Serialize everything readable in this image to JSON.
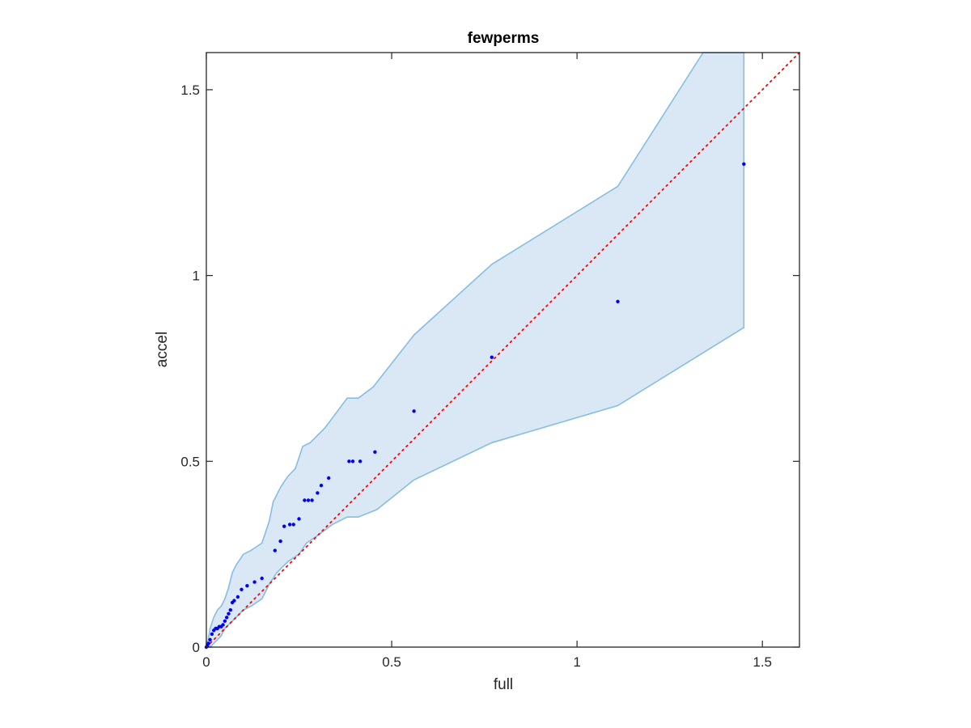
{
  "chart_data": {
    "type": "scatter",
    "title": "fewperms",
    "xlabel": "full",
    "ylabel": "accel",
    "xlim": [
      0,
      1.6
    ],
    "ylim": [
      0,
      1.6
    ],
    "xticks": [
      0,
      0.5,
      1,
      1.5
    ],
    "yticks": [
      0,
      0.5,
      1,
      1.5
    ],
    "xtick_labels": [
      "0",
      "0.5",
      "1",
      "1.5"
    ],
    "ytick_labels": [
      "0",
      "0.5",
      "1",
      "1.5"
    ],
    "grid": false,
    "colors": {
      "points": "#0000ff",
      "band_fill": "#d9e8f4",
      "band_edge": "#87bde0",
      "reference_line": "#ff0000",
      "axes": "#262626"
    },
    "reference_line": {
      "style": "dotted",
      "from": [
        0,
        0
      ],
      "to": [
        1.6,
        1.6
      ]
    },
    "band": {
      "upper": [
        [
          0.0,
          0.0
        ],
        [
          0.005,
          0.02
        ],
        [
          0.01,
          0.05
        ],
        [
          0.02,
          0.08
        ],
        [
          0.03,
          0.1
        ],
        [
          0.04,
          0.11
        ],
        [
          0.05,
          0.13
        ],
        [
          0.06,
          0.16
        ],
        [
          0.07,
          0.2
        ],
        [
          0.08,
          0.22
        ],
        [
          0.1,
          0.25
        ],
        [
          0.12,
          0.26
        ],
        [
          0.15,
          0.28
        ],
        [
          0.17,
          0.34
        ],
        [
          0.18,
          0.39
        ],
        [
          0.2,
          0.43
        ],
        [
          0.22,
          0.46
        ],
        [
          0.24,
          0.48
        ],
        [
          0.26,
          0.54
        ],
        [
          0.28,
          0.55
        ],
        [
          0.32,
          0.59
        ],
        [
          0.38,
          0.67
        ],
        [
          0.41,
          0.67
        ],
        [
          0.45,
          0.7
        ],
        [
          0.56,
          0.84
        ],
        [
          0.77,
          1.03
        ],
        [
          1.11,
          1.24
        ],
        [
          1.34,
          1.6
        ],
        [
          1.45,
          1.6
        ]
      ],
      "lower": [
        [
          1.45,
          0.86
        ],
        [
          1.11,
          0.65
        ],
        [
          0.77,
          0.55
        ],
        [
          0.56,
          0.45
        ],
        [
          0.46,
          0.37
        ],
        [
          0.41,
          0.35
        ],
        [
          0.38,
          0.35
        ],
        [
          0.34,
          0.33
        ],
        [
          0.3,
          0.3
        ],
        [
          0.27,
          0.28
        ],
        [
          0.25,
          0.25
        ],
        [
          0.22,
          0.23
        ],
        [
          0.19,
          0.2
        ],
        [
          0.17,
          0.17
        ],
        [
          0.15,
          0.13
        ],
        [
          0.12,
          0.11
        ],
        [
          0.1,
          0.1
        ],
        [
          0.08,
          0.08
        ],
        [
          0.06,
          0.06
        ],
        [
          0.05,
          0.05
        ],
        [
          0.04,
          0.03
        ],
        [
          0.03,
          0.02
        ],
        [
          0.01,
          0.0
        ],
        [
          0.0,
          0.0
        ]
      ]
    },
    "points": {
      "x": [
        0.0,
        0.003,
        0.006,
        0.01,
        0.015,
        0.02,
        0.025,
        0.03,
        0.035,
        0.04,
        0.045,
        0.05,
        0.055,
        0.06,
        0.065,
        0.07,
        0.075,
        0.085,
        0.095,
        0.11,
        0.13,
        0.15,
        0.185,
        0.2,
        0.21,
        0.225,
        0.235,
        0.25,
        0.265,
        0.275,
        0.285,
        0.3,
        0.31,
        0.33,
        0.385,
        0.395,
        0.415,
        0.455,
        0.56,
        0.77,
        1.11,
        1.45
      ],
      "y": [
        0.0,
        0.005,
        0.01,
        0.02,
        0.035,
        0.045,
        0.05,
        0.05,
        0.055,
        0.055,
        0.06,
        0.07,
        0.08,
        0.09,
        0.1,
        0.12,
        0.125,
        0.135,
        0.155,
        0.165,
        0.175,
        0.185,
        0.26,
        0.285,
        0.325,
        0.33,
        0.33,
        0.345,
        0.395,
        0.395,
        0.395,
        0.415,
        0.435,
        0.455,
        0.5,
        0.5,
        0.5,
        0.525,
        0.635,
        0.78,
        0.93,
        1.3
      ]
    }
  }
}
